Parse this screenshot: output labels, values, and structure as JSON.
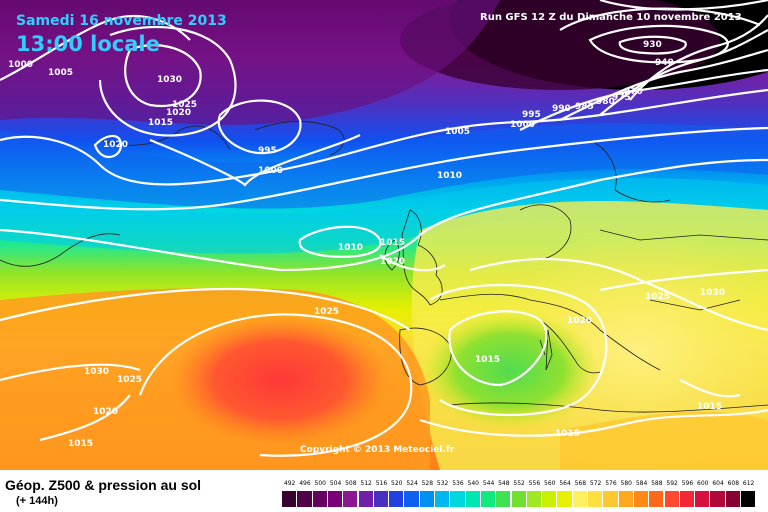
{
  "header": {
    "date": "Samedi 16 novembre 2013",
    "time": "13:00 locale",
    "run": "Run GFS 12 Z du Dimanche 10 novembre 2013"
  },
  "copyright": "Copyright © 2013 Meteociel.fr",
  "footer": {
    "caption": "Géop. Z500 & pression au sol",
    "sub": "(+ 144h)"
  },
  "legend": {
    "labels": [
      "492",
      "496",
      "500",
      "504",
      "508",
      "512",
      "516",
      "520",
      "524",
      "528",
      "532",
      "536",
      "540",
      "544",
      "548",
      "552",
      "556",
      "560",
      "564",
      "568",
      "572",
      "576",
      "580",
      "584",
      "588",
      "592",
      "596",
      "600",
      "604",
      "608",
      "612"
    ],
    "colors": [
      "#3a0032",
      "#52004a",
      "#660060",
      "#7a0078",
      "#8a1890",
      "#7020a8",
      "#4830c0",
      "#2040e0",
      "#1060f0",
      "#0090f0",
      "#00b8f0",
      "#00d8e0",
      "#00e8b0",
      "#10e880",
      "#40e050",
      "#70e030",
      "#a0e820",
      "#c8f000",
      "#e8f000",
      "#fff060",
      "#ffe040",
      "#ffc830",
      "#ffa820",
      "#ff8818",
      "#ff6818",
      "#ff4830",
      "#f02838",
      "#d81040",
      "#b00838",
      "#880030",
      "#000000"
    ]
  },
  "pressure_labels": [
    "1000",
    "1005",
    "1030",
    "1025",
    "1020",
    "1015",
    "1020",
    "995",
    "1000",
    "1005",
    "1010",
    "1010",
    "1015",
    "1020",
    "1025",
    "1030",
    "1025",
    "1020",
    "1015",
    "1015",
    "1015",
    "1020",
    "1025",
    "1030",
    "1015",
    "930",
    "940",
    "970",
    "975",
    "980",
    "985",
    "990",
    "995",
    "1000"
  ]
}
